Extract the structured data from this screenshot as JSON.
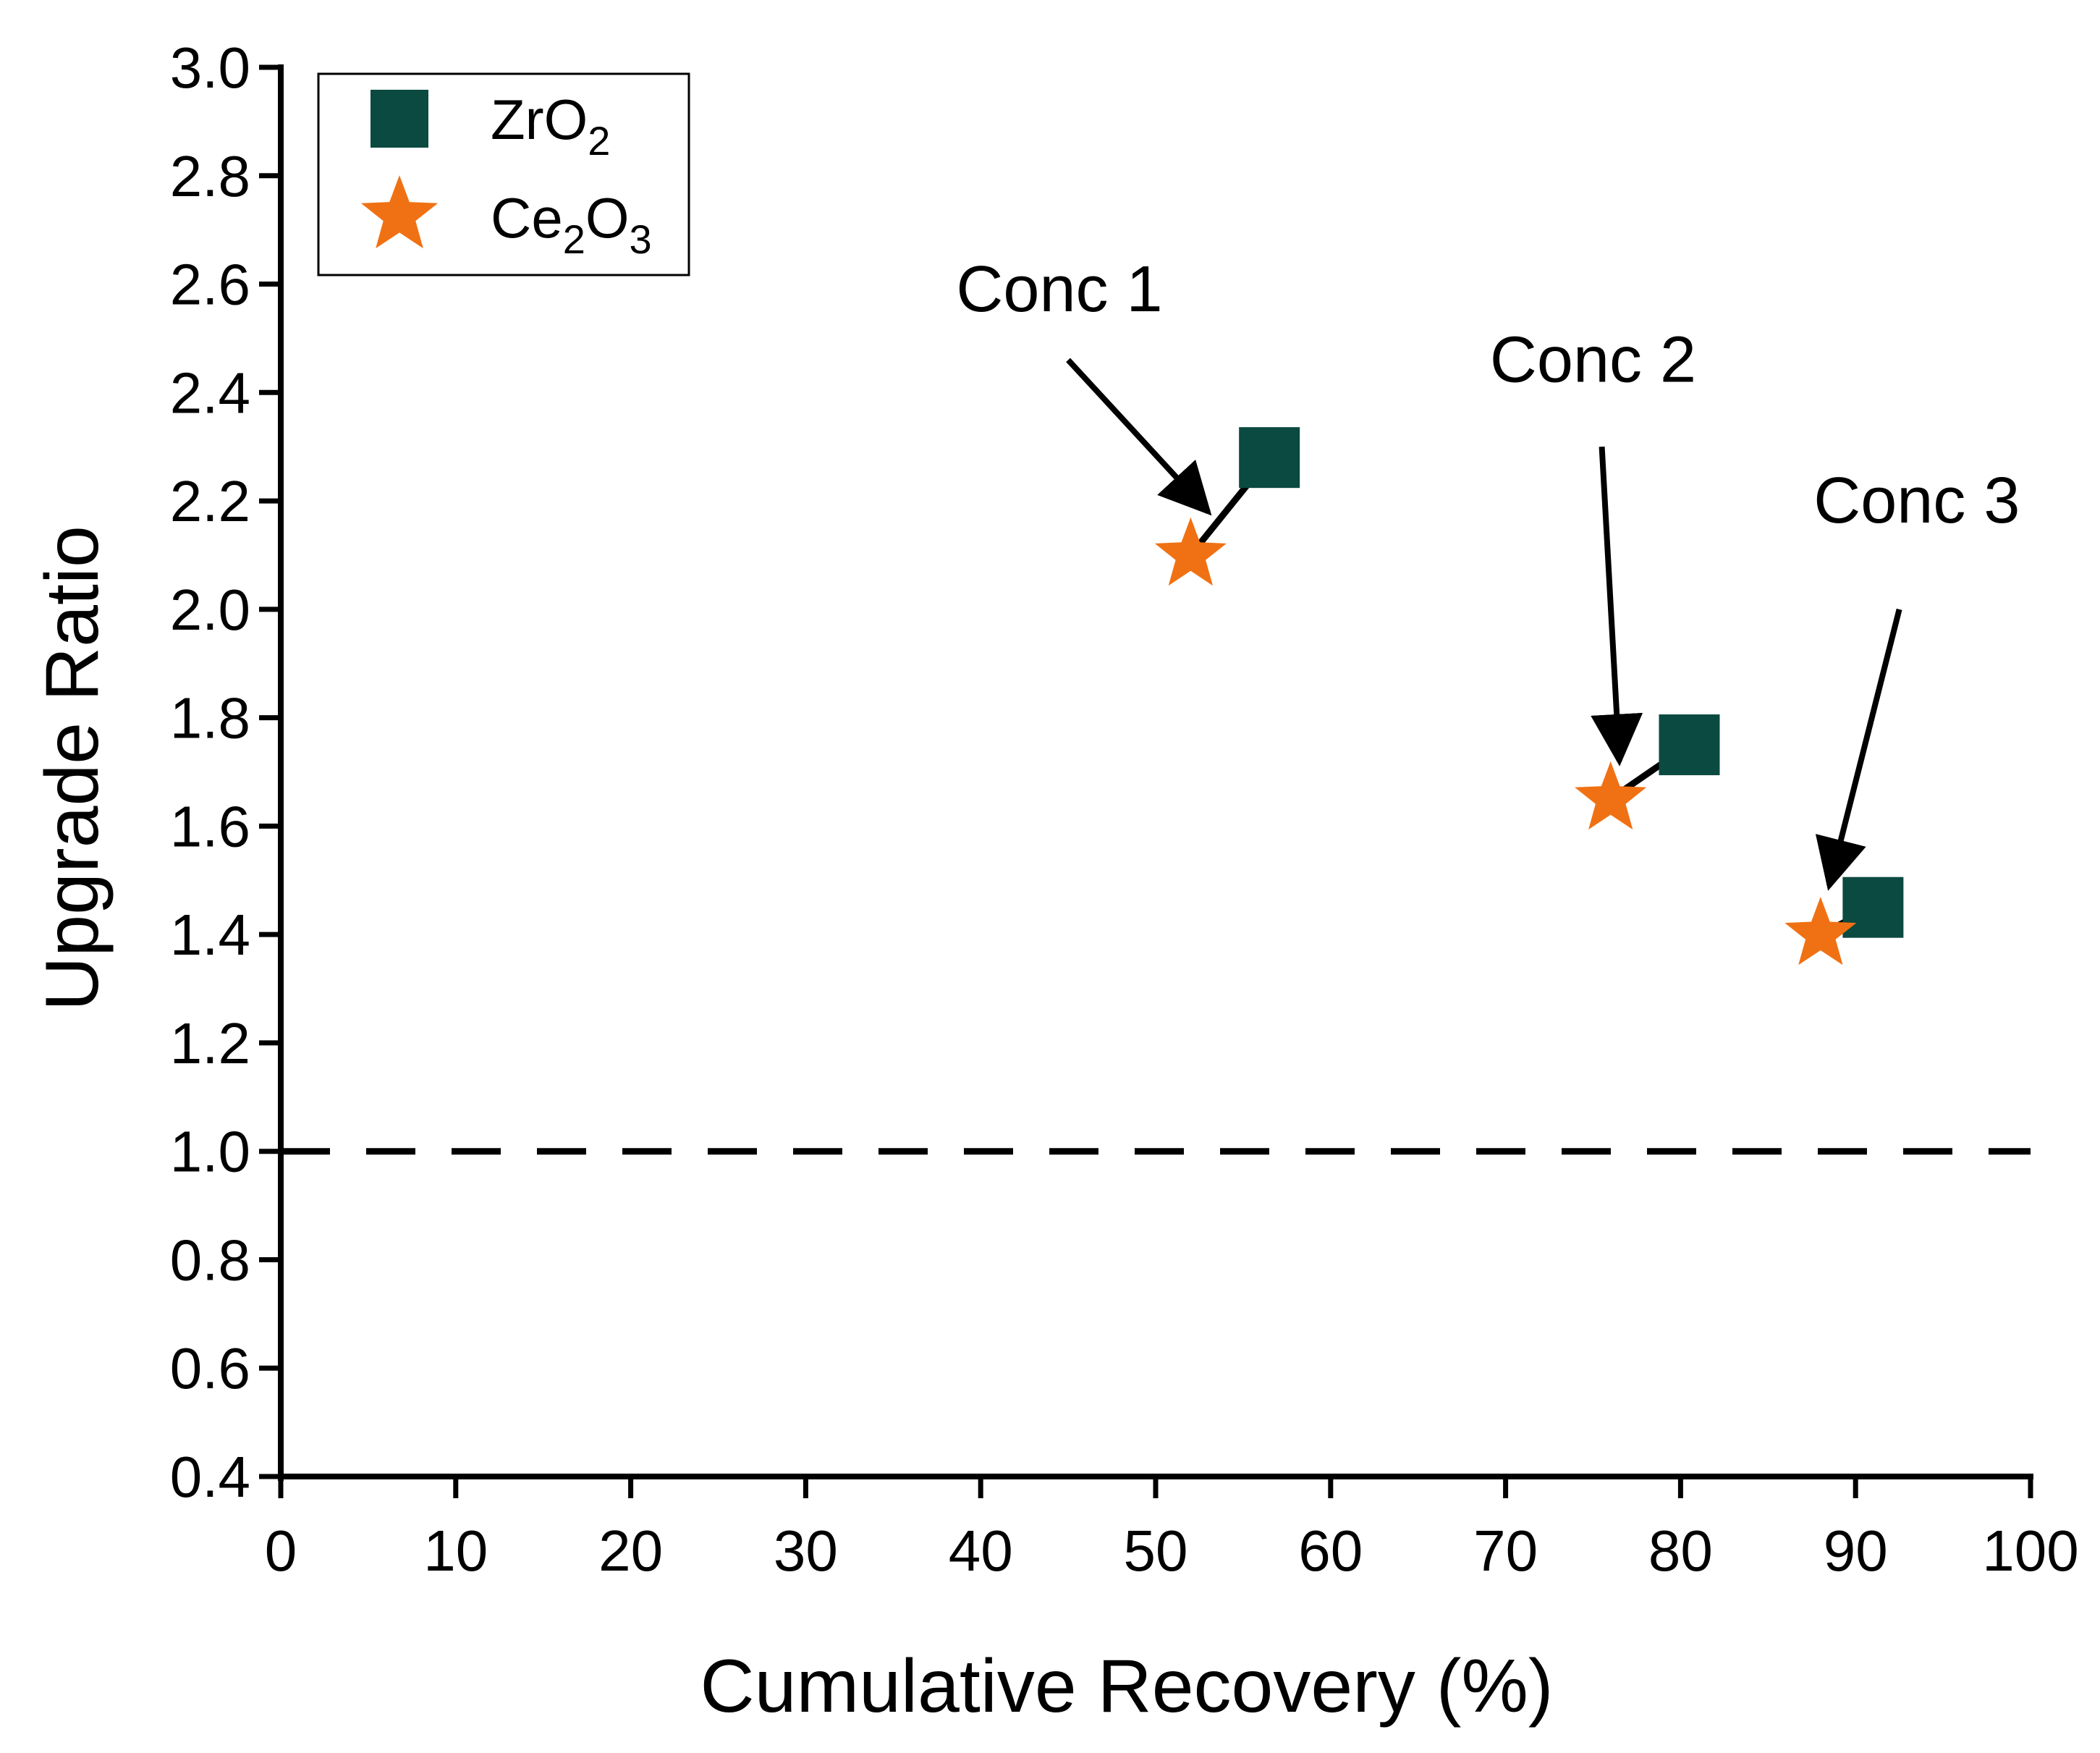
{
  "chart_data": {
    "type": "scatter",
    "title": "",
    "xlabel": "Cumulative Recovery (%)",
    "ylabel": "Upgrade Ratio",
    "xlim": [
      0,
      100
    ],
    "ylim": [
      0.4,
      3.0
    ],
    "x_ticks": [
      0,
      10,
      20,
      30,
      40,
      50,
      60,
      70,
      80,
      90,
      100
    ],
    "x_tick_labels": [
      "0",
      "10",
      "20",
      "30",
      "40",
      "50",
      "60",
      "70",
      "80",
      "90",
      "100"
    ],
    "y_ticks": [
      0.4,
      0.6,
      0.8,
      1.0,
      1.2,
      1.4,
      1.6,
      1.8,
      2.0,
      2.2,
      2.4,
      2.6,
      2.8,
      3.0
    ],
    "y_tick_labels": [
      "0.4",
      "0.6",
      "0.8",
      "1.0",
      "1.2",
      "1.4",
      "1.6",
      "1.8",
      "2.0",
      "2.2",
      "2.4",
      "2.6",
      "2.8",
      "3.0"
    ],
    "grid": false,
    "legend_position": "top-left",
    "series": [
      {
        "name": "ZrO2",
        "legend_base": "ZrO",
        "legend_sub": "2",
        "marker": "square",
        "color": "#0b4a40",
        "points": [
          {
            "x": 56.5,
            "y": 2.28
          },
          {
            "x": 80.5,
            "y": 1.75
          },
          {
            "x": 91.0,
            "y": 1.45
          }
        ]
      },
      {
        "name": "Ce2O3",
        "legend_parts": [
          "Ce",
          "2",
          "O",
          "3"
        ],
        "marker": "star",
        "color": "#f07113",
        "points": [
          {
            "x": 52.0,
            "y": 2.1
          },
          {
            "x": 76.0,
            "y": 1.65
          },
          {
            "x": 88.0,
            "y": 1.4
          }
        ]
      }
    ],
    "reference_line": {
      "y": 1.0,
      "style": "dashed",
      "color": "#000000"
    },
    "annotations": [
      {
        "label": "Conc 1",
        "text_x": 44.5,
        "text_y": 2.55,
        "arrow_from": [
          45.0,
          2.46
        ],
        "arrow_to": [
          53.0,
          2.18
        ],
        "link_from": [
          52.0,
          2.1
        ],
        "link_to": [
          56.5,
          2.28
        ]
      },
      {
        "label": "Conc 2",
        "text_x": 75.0,
        "text_y": 2.42,
        "arrow_from": [
          75.5,
          2.3
        ],
        "arrow_to": [
          76.5,
          1.72
        ],
        "link_from": [
          76.0,
          1.65
        ],
        "link_to": [
          80.5,
          1.75
        ]
      },
      {
        "label": "Conc 3",
        "text_x": 93.5,
        "text_y": 2.16,
        "arrow_from": [
          92.5,
          2.0
        ],
        "arrow_to": [
          88.5,
          1.49
        ],
        "link_from": [
          88.0,
          1.4
        ],
        "link_to": [
          91.0,
          1.45
        ]
      }
    ]
  }
}
